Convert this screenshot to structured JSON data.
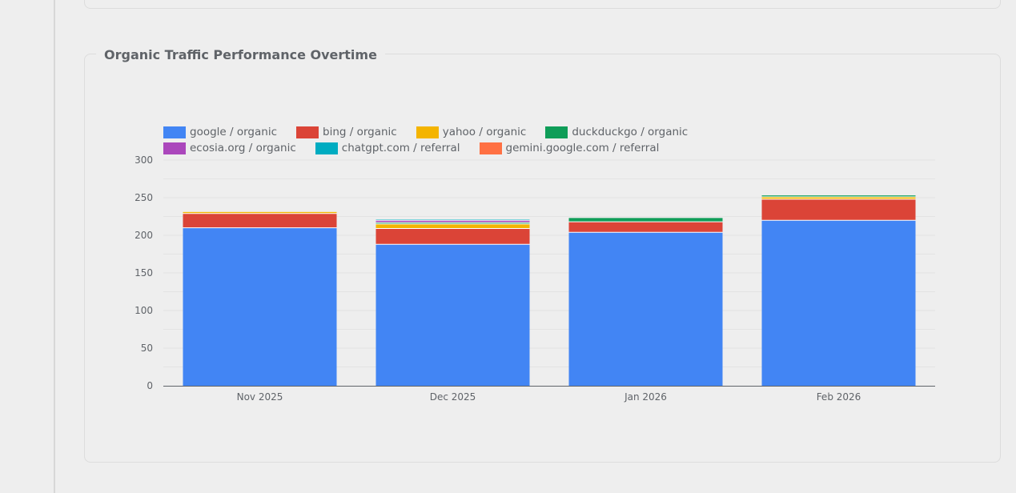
{
  "chart_title": "Organic Traffic Performance Overtime",
  "chart_data": {
    "type": "bar",
    "stacked": true,
    "title": "Organic Traffic Performance Overtime",
    "xlabel": "",
    "ylabel": "",
    "ylim": [
      0,
      300
    ],
    "yticks": [
      0,
      50,
      100,
      150,
      200,
      250,
      300
    ],
    "grid": true,
    "legend_position": "top",
    "categories": [
      "Nov 2025",
      "Dec 2025",
      "Jan 2026",
      "Feb 2026"
    ],
    "series": [
      {
        "name": "google / organic",
        "color": "#4285f4",
        "values": [
          210,
          188,
          204,
          220
        ]
      },
      {
        "name": "bing / organic",
        "color": "#db4437",
        "values": [
          19,
          21,
          14,
          28
        ]
      },
      {
        "name": "yahoo / organic",
        "color": "#f4b400",
        "values": [
          2,
          6,
          0,
          3
        ]
      },
      {
        "name": "duckduckgo / organic",
        "color": "#0f9d58",
        "values": [
          0,
          2,
          5,
          2
        ]
      },
      {
        "name": "ecosia.org / organic",
        "color": "#ab47bc",
        "values": [
          0,
          3,
          0,
          0
        ]
      },
      {
        "name": "chatgpt.com / referral",
        "color": "#00acc1",
        "values": [
          0,
          1,
          0,
          0
        ]
      },
      {
        "name": "gemini.google.com / referral",
        "color": "#ff7043",
        "values": [
          0,
          0,
          0,
          0
        ]
      }
    ]
  }
}
